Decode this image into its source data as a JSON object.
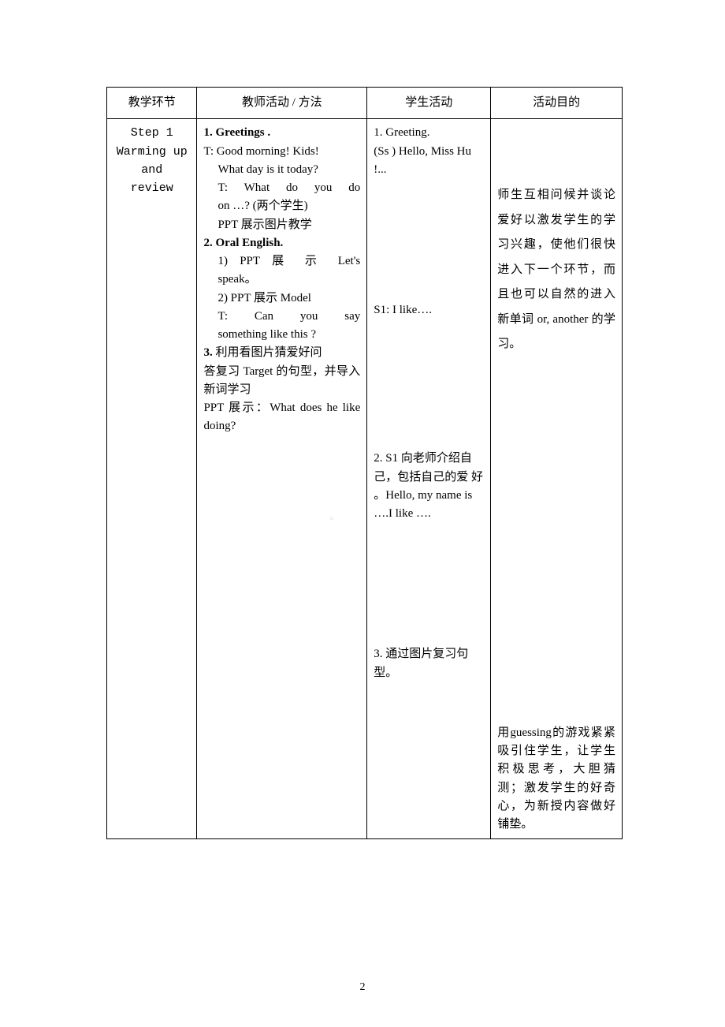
{
  "table": {
    "headers": {
      "col1": "教学环节",
      "col2": "教师活动 / 方法",
      "col3": "学生活动",
      "col4": "活动目的"
    },
    "step": {
      "line1": "Step 1",
      "line2": "Warming up",
      "line3": "and",
      "line4": "review"
    },
    "teacher": {
      "h1": "1. Greetings .",
      "t1": "T: Good morning! Kids!",
      "t2": "What day is it today?",
      "t3a": "T: What do you do",
      "t3b": "on …? (两个学生)",
      "t4": "PPT 展示图片教学",
      "h2": "2. Oral English.",
      "t5a": "1) PPT 展 示  Let's",
      "t5b": "speak。",
      "t6": "2) PPT 展示 Model",
      "t7a": "T:  Can  you  say",
      "t7b": "something like this ?",
      "h3a": "3. ",
      "h3b": "利用看图片猜爱好问",
      "t8": "答复习 Target 的句型，并导入新词学习",
      "t9": "PPT 展示：What does he like doing?"
    },
    "student": {
      "s1": "1. Greeting.",
      "s2": "(Ss ) Hello, Miss Hu !...",
      "s3": "S1: I like….",
      "s4": "2. S1 向老师介绍自己，包括自己的爱 好 。Hello, my name  is  ….I like ….",
      "s5": "3. 通过图片复习句型。"
    },
    "purpose": {
      "p1": "师生互相问候并谈论爱好以激发学生的学习兴趣，使他们很快进入下一个环节，而且也可以自然的进入新单词 or, another 的学习。",
      "p2": "用guessing的游戏紧紧吸引住学生，让学生积极思考，大胆猜测；激发学生的好奇心，为新授内容做好铺垫。"
    }
  },
  "pageNumber": "2",
  "watermark": "○"
}
